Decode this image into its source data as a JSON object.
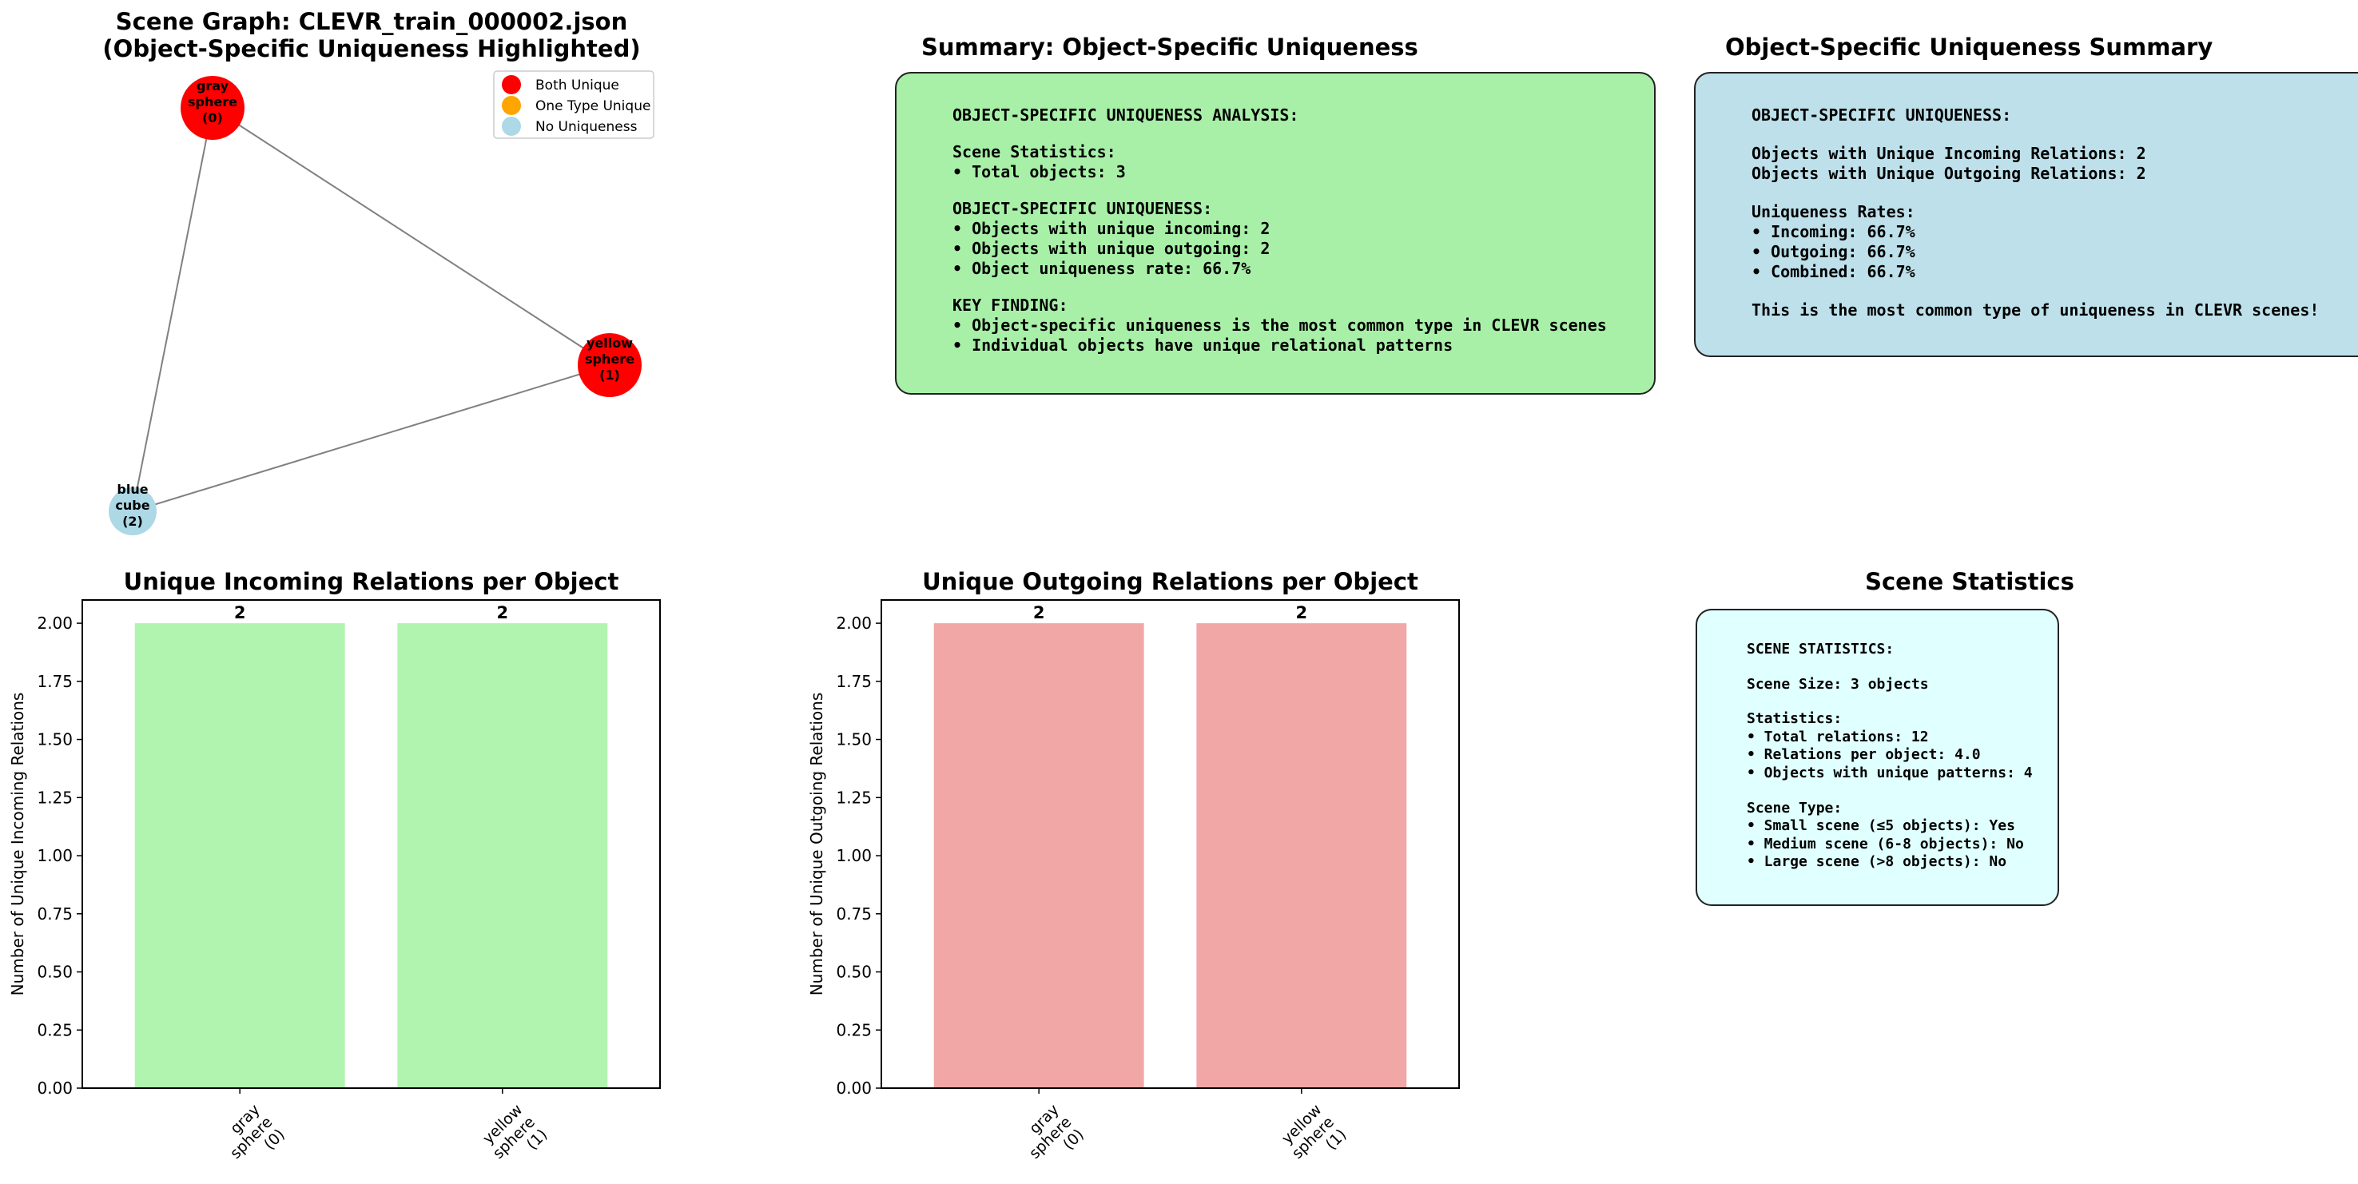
{
  "graph": {
    "title_line1": "Scene Graph: CLEVR_train_000002.json",
    "title_line2": "(Object-Specific Uniqueness Highlighted)",
    "legend": [
      {
        "label": "Both Unique",
        "color": "#ff0000"
      },
      {
        "label": "One Type Unique",
        "color": "#ffa500"
      },
      {
        "label": "No Uniqueness",
        "color": "#add8e6"
      }
    ],
    "nodes": [
      {
        "id": 0,
        "lines": [
          "gray",
          "sphere",
          "(0)"
        ],
        "category": "Both Unique",
        "color": "#ff0000"
      },
      {
        "id": 1,
        "lines": [
          "yellow",
          "sphere",
          "(1)"
        ],
        "category": "Both Unique",
        "color": "#ff0000"
      },
      {
        "id": 2,
        "lines": [
          "blue",
          "cube",
          "(2)"
        ],
        "category": "No Uniqueness",
        "color": "#add8e6"
      }
    ],
    "edges": [
      [
        0,
        1
      ],
      [
        0,
        2
      ],
      [
        1,
        2
      ]
    ]
  },
  "summary_green": {
    "title": "Summary: Object-Specific Uniqueness",
    "lines": [
      "OBJECT-SPECIFIC UNIQUENESS ANALYSIS:",
      "",
      "Scene Statistics:",
      "• Total objects: 3",
      "",
      "OBJECT-SPECIFIC UNIQUENESS:",
      "• Objects with unique incoming: 2",
      "• Objects with unique outgoing: 2",
      "• Object uniqueness rate: 66.7%",
      "",
      "KEY FINDING:",
      "• Object-specific uniqueness is the most common type in CLEVR scenes",
      "• Individual objects have unique relational patterns"
    ],
    "bg": "#a8f0a8"
  },
  "summary_blue": {
    "title": "Object-Specific Uniqueness Summary",
    "lines": [
      "OBJECT-SPECIFIC UNIQUENESS:",
      "",
      "Objects with Unique Incoming Relations: 2",
      "Objects with Unique Outgoing Relations: 2",
      "",
      "Uniqueness Rates:",
      "• Incoming: 66.7%",
      "• Outgoing: 66.7%",
      "• Combined: 66.7%",
      "",
      "This is the most common type of uniqueness in CLEVR scenes!"
    ],
    "bg": "#bde0ea"
  },
  "scene_stats": {
    "title": "Scene Statistics",
    "lines": [
      "SCENE STATISTICS:",
      "",
      "Scene Size: 3 objects",
      "",
      "Statistics:",
      "• Total relations: 12",
      "• Relations per object: 4.0",
      "• Objects with unique patterns: 4",
      "",
      "Scene Type:",
      "• Small scene (≤5 objects): Yes",
      "• Medium scene (6-8 objects): No",
      "• Large scene (>8 objects): No"
    ],
    "bg": "#e0ffff"
  },
  "chart_data": [
    {
      "type": "bar",
      "title": "Unique Incoming Relations per Object",
      "xlabel": "",
      "ylabel": "Number of Unique Incoming Relations",
      "categories": [
        "gray\nsphere\n(0)",
        "yellow\nsphere\n(1)"
      ],
      "values": [
        2,
        2
      ],
      "data_labels": [
        "2",
        "2"
      ],
      "ylim": [
        0,
        2.1
      ],
      "yticks": [
        "0.00",
        "0.25",
        "0.50",
        "0.75",
        "1.00",
        "1.25",
        "1.50",
        "1.75",
        "2.00"
      ],
      "color": "#b0f4b0",
      "grid": false
    },
    {
      "type": "bar",
      "title": "Unique Outgoing Relations per Object",
      "xlabel": "",
      "ylabel": "Number of Unique Outgoing Relations",
      "categories": [
        "gray\nsphere\n(0)",
        "yellow\nsphere\n(1)"
      ],
      "values": [
        2,
        2
      ],
      "data_labels": [
        "2",
        "2"
      ],
      "ylim": [
        0,
        2.1
      ],
      "yticks": [
        "0.00",
        "0.25",
        "0.50",
        "0.75",
        "1.00",
        "1.25",
        "1.50",
        "1.75",
        "2.00"
      ],
      "color": "#f2a7a7",
      "grid": false
    }
  ]
}
